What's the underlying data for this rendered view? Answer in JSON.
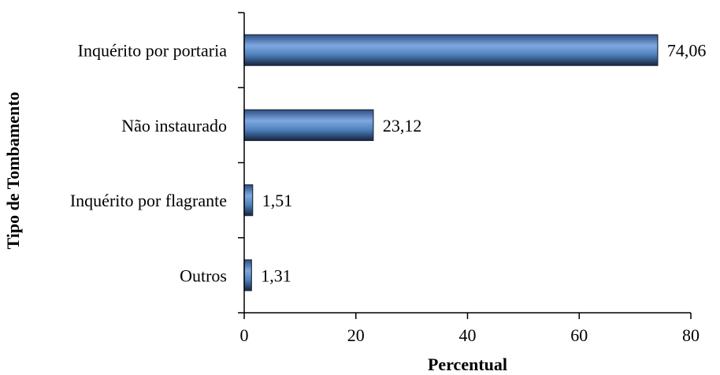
{
  "chart_data": {
    "type": "bar",
    "orientation": "horizontal",
    "title": "",
    "xlabel": "Percentual",
    "ylabel": "Tipo de Tombamento",
    "categories": [
      "Inquérito por portaria",
      "Não instaurado",
      "Inquérito por flagrante",
      "Outros"
    ],
    "values": [
      74.06,
      23.12,
      1.51,
      1.31
    ],
    "value_labels": [
      "74,06",
      "23,12",
      "1,51",
      "1,31"
    ],
    "xlim": [
      0,
      80
    ],
    "xticks": [
      0,
      20,
      40,
      60,
      80
    ],
    "xtick_labels": [
      "0",
      "20",
      "40",
      "60",
      "80"
    ],
    "grid": false,
    "legend": "none",
    "bar_color": "#4f81bd",
    "bar_edge_color": "#1f2a3a"
  }
}
